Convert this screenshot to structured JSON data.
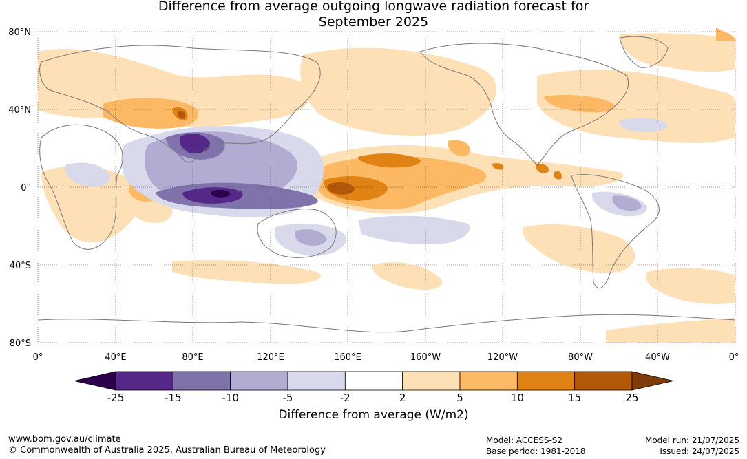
{
  "title_line1": "Difference from average outgoing longwave radiation forecast for",
  "title_line2": "September 2025",
  "lat_labels": [
    "80°N",
    "40°N",
    "0°",
    "40°S",
    "80°S"
  ],
  "lon_labels": [
    "0°",
    "40°E",
    "80°E",
    "120°E",
    "160°E",
    "160°W",
    "120°W",
    "80°W",
    "40°W",
    "0°"
  ],
  "colorbar": {
    "ticks": [
      "-25",
      "-15",
      "-10",
      "-5",
      "-2",
      "2",
      "5",
      "10",
      "15",
      "25"
    ],
    "colors": {
      "lt_-25": "#2d004b",
      "-25_-15": "#542788",
      "-15_-10": "#8073ac",
      "-10_-5": "#b2abd2",
      "-5_-2": "#d8daeb",
      "-2_2": "#ffffff",
      "2_5": "#fee0b6",
      "5_10": "#fdb863",
      "10_15": "#e08214",
      "15_25": "#b35806",
      "gt_25": "#7f3b08"
    },
    "label": "Difference from average (W/m2)"
  },
  "footer": {
    "url": "www.bom.gov.au/climate",
    "copyright": "© Commonwealth of Australia 2025, Australian Bureau of Meteorology",
    "model": "Model: ACCESS-S2",
    "base_period": "Base period: 1981-2018",
    "model_run": "Model run: 21/07/2025",
    "issued": "Issued: 24/07/2025"
  }
}
